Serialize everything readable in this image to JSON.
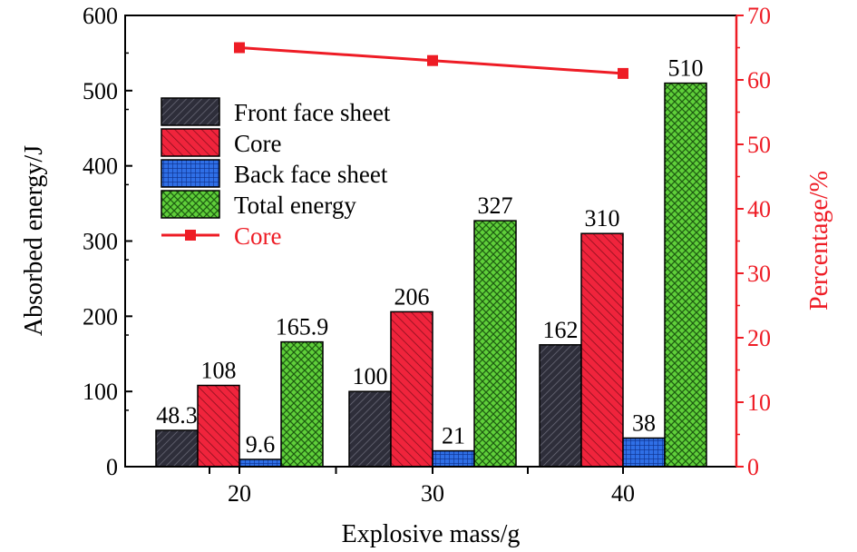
{
  "chart_data": {
    "type": "bar",
    "xlabel": "Explosive mass/g",
    "ylabel": "Absorbed energy/J",
    "y2label": "Percentage/%",
    "categories": [
      "20",
      "30",
      "40"
    ],
    "ylim": [
      0,
      600
    ],
    "yticks": [
      "0",
      "100",
      "200",
      "300",
      "400",
      "500",
      "600"
    ],
    "y2lim": [
      0,
      70
    ],
    "y2ticks": [
      "0",
      "10",
      "20",
      "30",
      "40",
      "50",
      "60",
      "70"
    ],
    "series": [
      {
        "name": "Front face sheet",
        "values": [
          48.3,
          100,
          162
        ],
        "labels": [
          "48.3",
          "100",
          "162"
        ],
        "color": "#2e2e3a",
        "pattern": "diag-dark"
      },
      {
        "name": "Core",
        "values": [
          108,
          206,
          310
        ],
        "labels": [
          "108",
          "206",
          "310"
        ],
        "color": "#f0243c",
        "pattern": "diag-red"
      },
      {
        "name": "Back face sheet",
        "values": [
          9.6,
          21,
          38
        ],
        "labels": [
          "9.6",
          "21",
          "38"
        ],
        "color": "#2f6fe6",
        "pattern": "grid-blue"
      },
      {
        "name": "Total energy",
        "values": [
          165.9,
          327,
          510
        ],
        "labels": [
          "165.9",
          "327",
          "510"
        ],
        "color": "#5fcf3a",
        "pattern": "cross-green"
      }
    ],
    "line_series": {
      "name": "Core",
      "axis": "right",
      "values": [
        65,
        63,
        61
      ],
      "color": "#ee1c25"
    },
    "legend_position": "top-left",
    "grid": false
  }
}
